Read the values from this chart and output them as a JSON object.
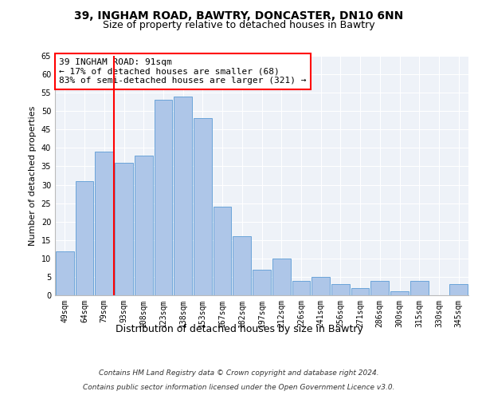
{
  "title1": "39, INGHAM ROAD, BAWTRY, DONCASTER, DN10 6NN",
  "title2": "Size of property relative to detached houses in Bawtry",
  "xlabel": "Distribution of detached houses by size in Bawtry",
  "ylabel": "Number of detached properties",
  "footer1": "Contains HM Land Registry data © Crown copyright and database right 2024.",
  "footer2": "Contains public sector information licensed under the Open Government Licence v3.0.",
  "categories": [
    "49sqm",
    "64sqm",
    "79sqm",
    "93sqm",
    "108sqm",
    "123sqm",
    "138sqm",
    "153sqm",
    "167sqm",
    "182sqm",
    "197sqm",
    "212sqm",
    "226sqm",
    "241sqm",
    "256sqm",
    "271sqm",
    "286sqm",
    "300sqm",
    "315sqm",
    "330sqm",
    "345sqm"
  ],
  "values": [
    12,
    31,
    39,
    36,
    38,
    53,
    54,
    48,
    24,
    16,
    7,
    10,
    4,
    5,
    3,
    2,
    4,
    1,
    4,
    0,
    3
  ],
  "bar_color": "#aec6e8",
  "bar_edge_color": "#5b9bd5",
  "vline_color": "red",
  "vline_x": 2.5,
  "annotation_text": "39 INGHAM ROAD: 91sqm\n← 17% of detached houses are smaller (68)\n83% of semi-detached houses are larger (321) →",
  "annotation_box_color": "white",
  "annotation_box_edge": "red",
  "ylim": [
    0,
    65
  ],
  "yticks": [
    0,
    5,
    10,
    15,
    20,
    25,
    30,
    35,
    40,
    45,
    50,
    55,
    60,
    65
  ],
  "bg_color": "#eef2f8",
  "grid_color": "white",
  "title1_fontsize": 10,
  "title2_fontsize": 9,
  "xlabel_fontsize": 9,
  "ylabel_fontsize": 8,
  "tick_fontsize": 7,
  "annotation_fontsize": 8,
  "footer_fontsize": 6.5
}
